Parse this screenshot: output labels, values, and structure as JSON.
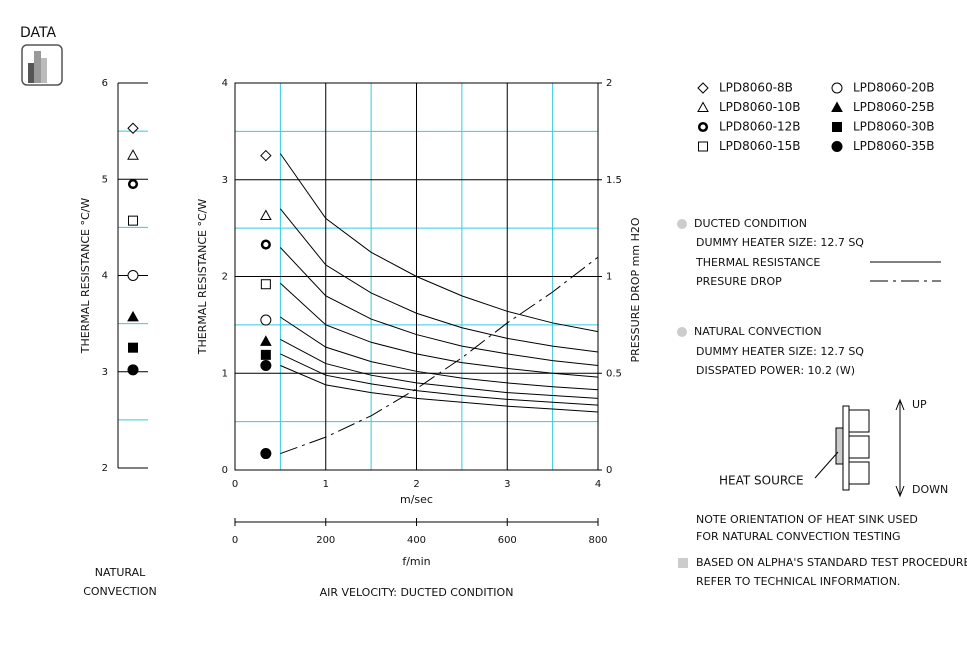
{
  "header": {
    "title": "DATA"
  },
  "chart_data": [
    {
      "type": "scatter",
      "ylabel": "THERMAL RESISTANCE °C/W",
      "xlabel": [
        "NATURAL",
        "CONVECTION"
      ],
      "ylim": [
        2,
        6
      ],
      "yticks": [
        2,
        3,
        4,
        5,
        6
      ],
      "yminor": [
        2.5,
        3.5,
        4.5,
        5.5
      ],
      "grid_color": "#000000",
      "minor_color": "#33ccdd",
      "series": [
        {
          "marker": "diamond",
          "values": [
            5.53
          ]
        },
        {
          "marker": "triangle",
          "values": [
            5.25
          ]
        },
        {
          "marker": "ring",
          "values": [
            4.95
          ]
        },
        {
          "marker": "square",
          "values": [
            4.57
          ]
        },
        {
          "marker": "circle",
          "values": [
            4.0
          ]
        },
        {
          "marker": "triangle-filled",
          "values": [
            3.57
          ]
        },
        {
          "marker": "square-filled",
          "values": [
            3.25
          ]
        },
        {
          "marker": "circle-filled",
          "values": [
            3.02
          ]
        }
      ]
    },
    {
      "type": "line",
      "ylabel": "THERMAL RESISTANCE °C/W",
      "y2label": "PRESSURE DROP   mm H2O",
      "xlabel": "m/sec",
      "x2label": "f/min",
      "caption": "AIR VELOCITY:  DUCTED CONDITION",
      "xlim": [
        0,
        4
      ],
      "xticks": [
        0,
        1,
        2,
        3,
        4
      ],
      "xminor": [
        0.5,
        1.5,
        2.5,
        3.5
      ],
      "x2lim": [
        0,
        800
      ],
      "x2ticks": [
        0,
        200,
        400,
        600,
        800
      ],
      "ylim": [
        0,
        4
      ],
      "yticks": [
        0,
        1,
        2,
        3,
        4
      ],
      "yminor": [
        0.5,
        1.5,
        2.5,
        3.5
      ],
      "y2lim": [
        0,
        2
      ],
      "y2ticks": [
        0,
        0.5,
        1,
        1.5,
        2
      ],
      "grid_color": "#000000",
      "minor_color": "#33ccdd",
      "color": "#000000",
      "marker_x": 0.34,
      "x": [
        0.5,
        1,
        1.5,
        2,
        2.5,
        3,
        3.5,
        4
      ],
      "series": [
        {
          "name": "LPD8060-8B",
          "marker": "diamond",
          "marker_value": 3.25,
          "values": [
            3.27,
            2.6,
            2.25,
            2.0,
            1.8,
            1.64,
            1.52,
            1.43
          ]
        },
        {
          "name": "LPD8060-10B",
          "marker": "triangle",
          "marker_value": 2.63,
          "values": [
            2.7,
            2.12,
            1.83,
            1.62,
            1.47,
            1.36,
            1.28,
            1.22
          ]
        },
        {
          "name": "LPD8060-12B",
          "marker": "ring",
          "marker_value": 2.33,
          "values": [
            2.3,
            1.8,
            1.56,
            1.4,
            1.28,
            1.2,
            1.13,
            1.08
          ]
        },
        {
          "name": "LPD8060-15B",
          "marker": "square",
          "marker_value": 1.92,
          "values": [
            1.93,
            1.5,
            1.32,
            1.2,
            1.11,
            1.05,
            1.0,
            0.96
          ]
        },
        {
          "name": "LPD8060-20B",
          "marker": "circle",
          "marker_value": 1.55,
          "values": [
            1.58,
            1.27,
            1.12,
            1.02,
            0.95,
            0.9,
            0.86,
            0.83
          ]
        },
        {
          "name": "LPD8060-25B",
          "marker": "triangle-filled",
          "marker_value": 1.33,
          "values": [
            1.35,
            1.1,
            0.98,
            0.9,
            0.85,
            0.8,
            0.77,
            0.74
          ]
        },
        {
          "name": "LPD8060-30B",
          "marker": "square-filled",
          "marker_value": 1.19,
          "values": [
            1.2,
            0.98,
            0.89,
            0.82,
            0.77,
            0.73,
            0.7,
            0.67
          ]
        },
        {
          "name": "LPD8060-35B",
          "marker": "circle-filled",
          "marker_value": 1.08,
          "values": [
            1.08,
            0.88,
            0.8,
            0.74,
            0.7,
            0.66,
            0.63,
            0.6
          ]
        },
        {
          "axis": "y2",
          "dash": "dashdot",
          "marker": "circle-filled",
          "marker_value": 0.085,
          "values": [
            0.085,
            0.17,
            0.28,
            0.42,
            0.58,
            0.76,
            0.92,
            1.1
          ]
        }
      ]
    }
  ],
  "notes": {
    "ducted": {
      "title": "DUCTED CONDITION",
      "heater": "DUMMY HEATER SIZE: 12.7 SQ",
      "thermal": "THERMAL RESISTANCE",
      "pressure": "PRESURE DROP"
    },
    "natural": {
      "title": "NATURAL CONVECTION",
      "heater": "DUMMY HEATER SIZE: 12.7 SQ",
      "power": "DISSPATED POWER:  10.2 (W)"
    },
    "diagram": {
      "up": "UP",
      "down": "DOWN",
      "source": "HEAT SOURCE"
    },
    "orientation": [
      "NOTE ORIENTATION OF HEAT SINK USED",
      "FOR NATURAL CONVECTION TESTING"
    ],
    "procedure": [
      "BASED ON ALPHA'S STANDARD TEST PROCEDURE",
      "REFER TO TECHNICAL INFORMATION."
    ]
  }
}
